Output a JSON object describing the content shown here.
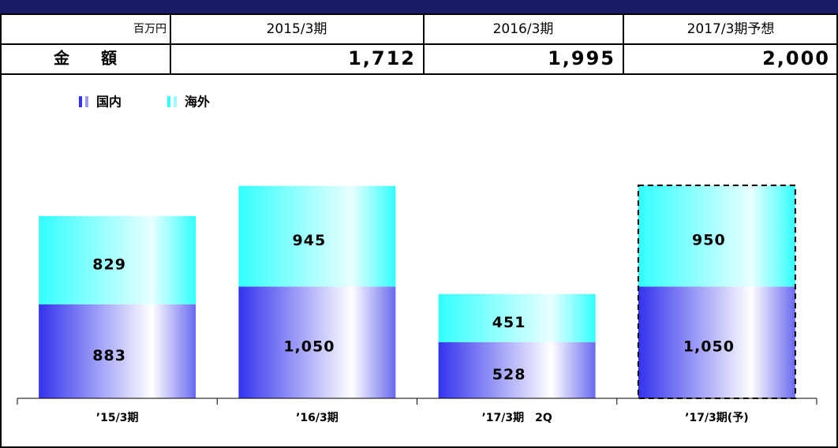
{
  "table": {
    "header": [
      "百万円",
      "2015/3期",
      "2016/3期",
      "2017/3期予想"
    ],
    "row": [
      "金　　額",
      "1,712",
      "1,995",
      "2,000"
    ]
  },
  "chart_data": {
    "type": "bar",
    "stacked": true,
    "categories": [
      "’15/3期",
      "’16/3期",
      "’17/3期　2Q",
      "’17/3期(予)"
    ],
    "series": [
      {
        "name": "国内",
        "color": "#3333ee",
        "values": [
          883,
          1050,
          528,
          1050
        ],
        "value_labels": [
          "883",
          "1,050",
          "528",
          "1,050"
        ]
      },
      {
        "name": "海外",
        "color": "#33ffff",
        "values": [
          829,
          945,
          451,
          950
        ],
        "value_labels": [
          "829",
          "945",
          "451",
          "950"
        ]
      }
    ],
    "dashed": [
      false,
      false,
      false,
      true
    ]
  }
}
